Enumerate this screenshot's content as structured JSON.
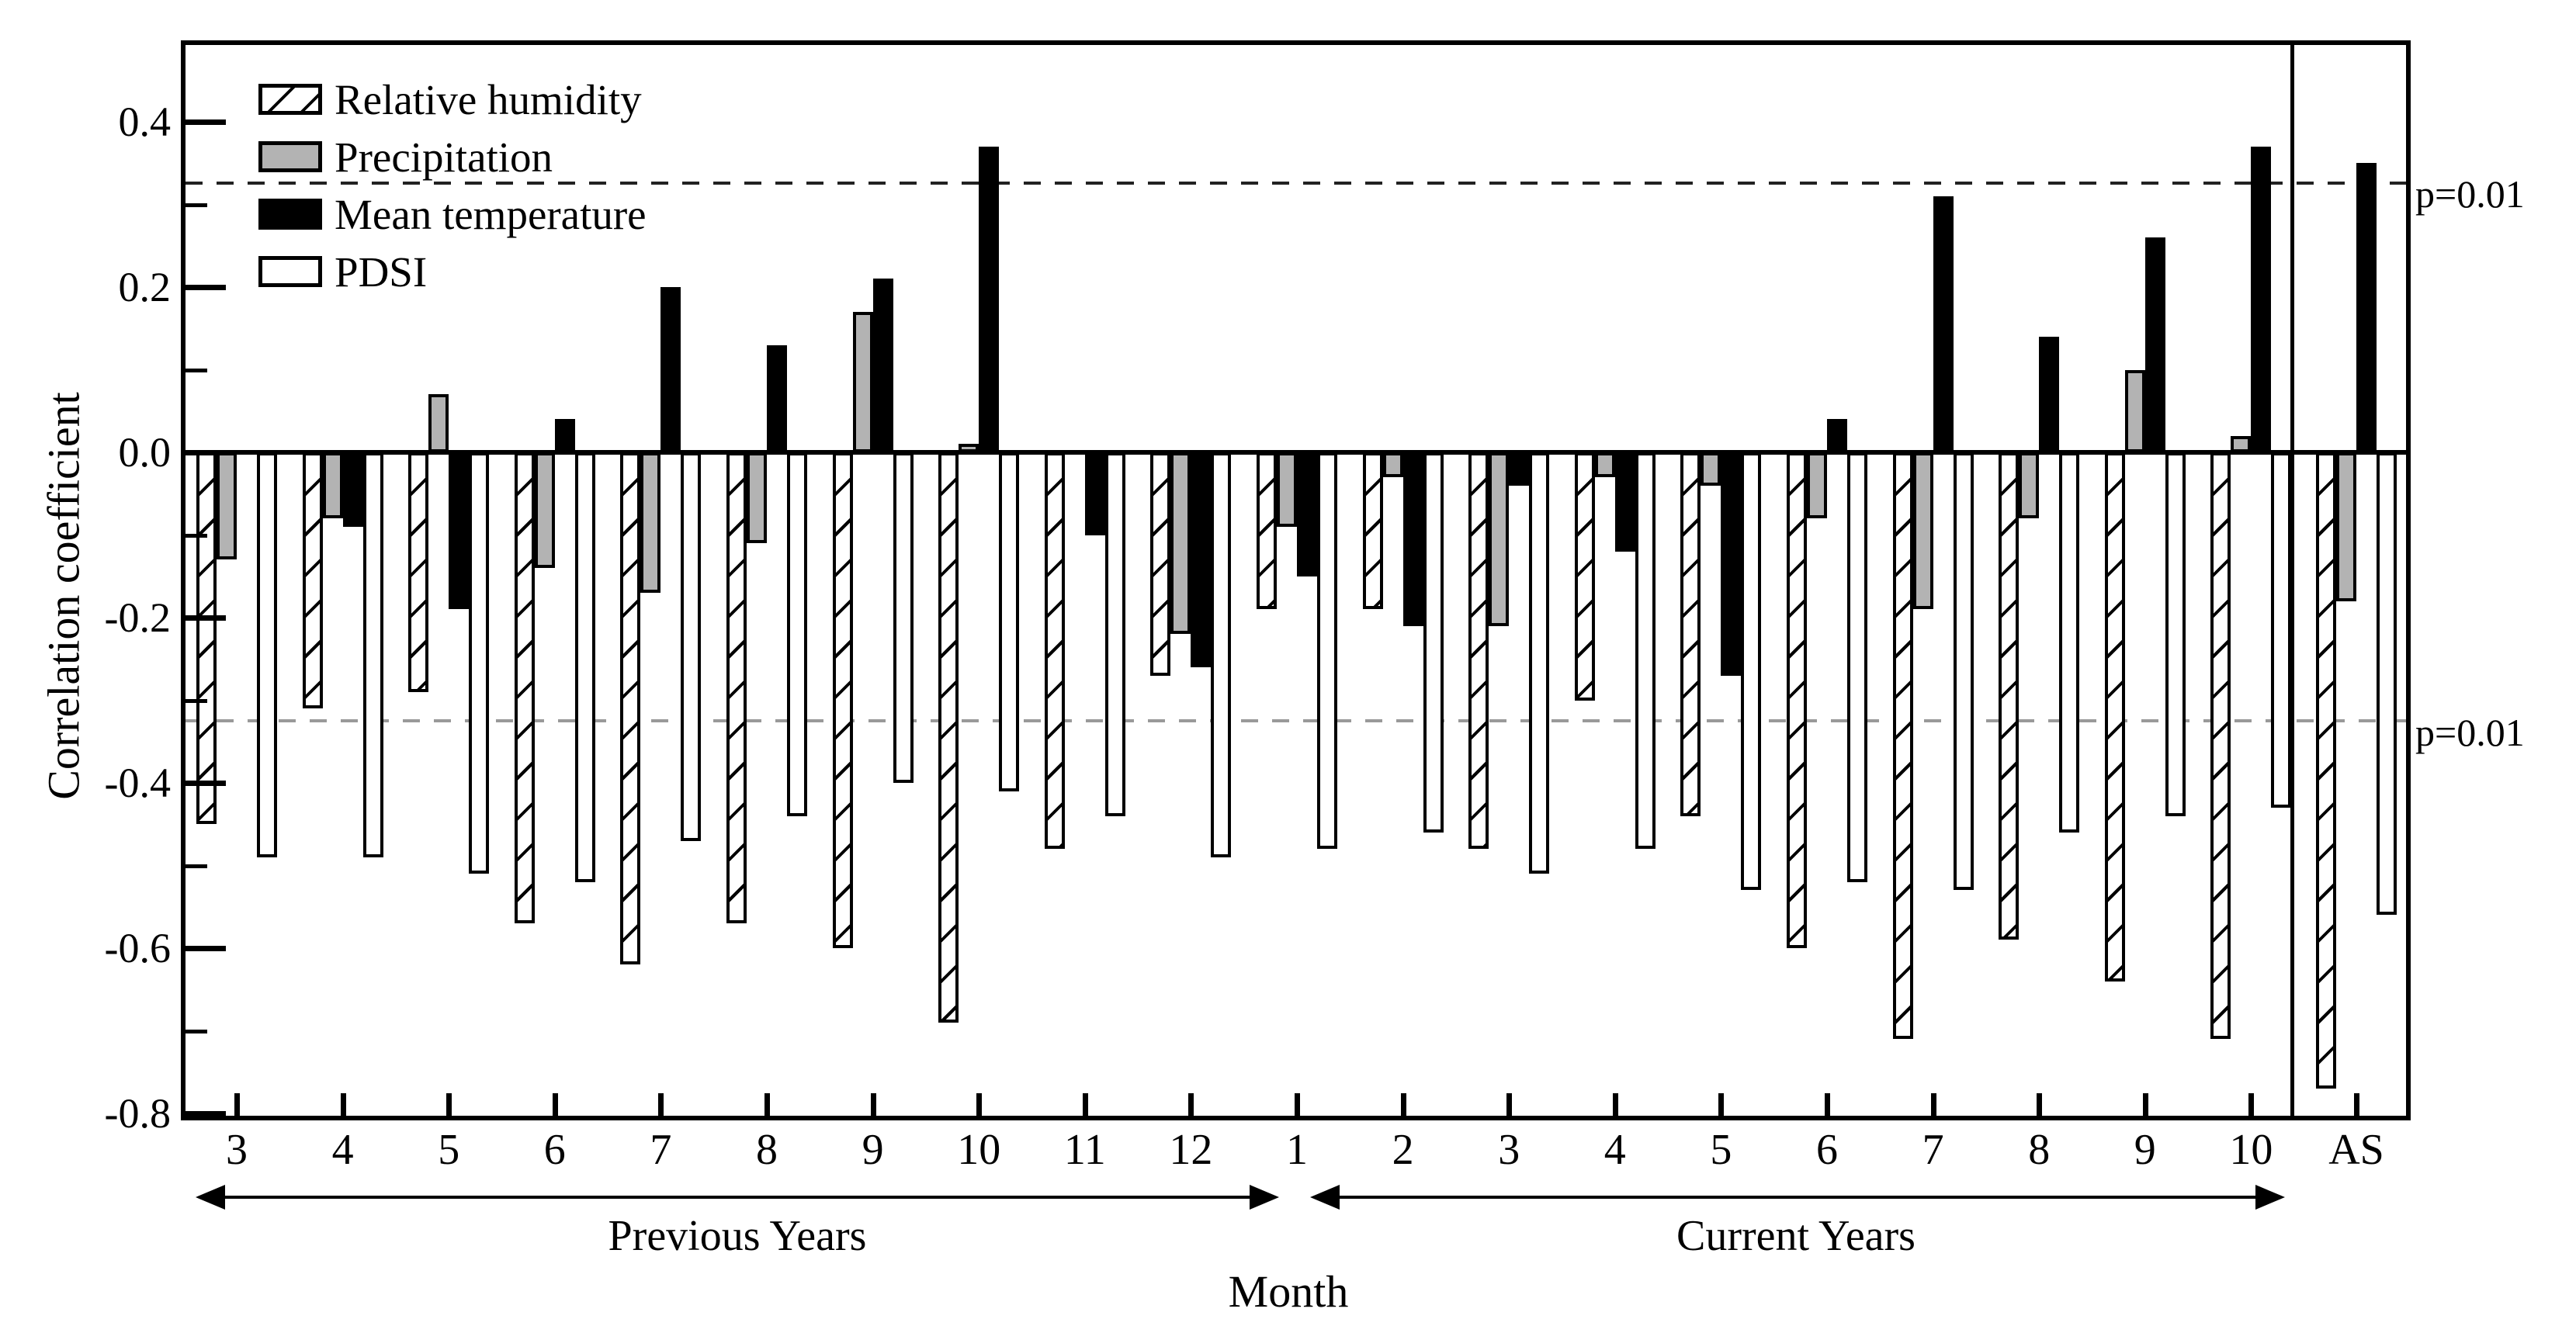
{
  "figure": {
    "y_axis_label": "Correlation coefficient",
    "x_axis_label": "Month",
    "span_labels": {
      "previous": "Previous Years",
      "current": "Current Years"
    },
    "y_tick_labels": [
      "0.4",
      "0.2",
      "0.0",
      "-0.2",
      "-0.4",
      "-0.6",
      "-0.8"
    ],
    "significance_label": "p=0.01",
    "legend": [
      {
        "key": "rh",
        "label": "Relative humidity"
      },
      {
        "key": "precip",
        "label": "Precipitation"
      },
      {
        "key": "temp",
        "label": "Mean temperature"
      },
      {
        "key": "pdsi",
        "label": "PDSI"
      }
    ],
    "colors": {
      "precipitation": "#b3b3b3",
      "temperature": "#000000",
      "pdsi": "#ffffff",
      "hatch": "#000000"
    }
  },
  "chart_data": {
    "type": "bar",
    "ylabel": "Correlation coefficient",
    "xlabel": "Month",
    "ylim": [
      -0.8,
      0.5
    ],
    "y_ticks": [
      0.4,
      0.2,
      0.0,
      -0.2,
      -0.4,
      -0.6,
      -0.8
    ],
    "grid": false,
    "legend_position": "top-left",
    "significance_lines": [
      {
        "value": 0.325,
        "label": "p=0.01",
        "style": "dashed"
      },
      {
        "value": -0.325,
        "label": "p=0.01",
        "style": "dashed"
      }
    ],
    "categories": [
      "3",
      "4",
      "5",
      "6",
      "7",
      "8",
      "9",
      "10",
      "11",
      "12",
      "1",
      "2",
      "3",
      "4",
      "5",
      "6",
      "7",
      "8",
      "9",
      "10",
      "AS"
    ],
    "category_periods": [
      "previous",
      "previous",
      "previous",
      "previous",
      "previous",
      "previous",
      "previous",
      "previous",
      "previous",
      "previous",
      "current",
      "current",
      "current",
      "current",
      "current",
      "current",
      "current",
      "current",
      "current",
      "current",
      "aggregate"
    ],
    "series": [
      {
        "name": "Relative humidity",
        "style": "rh",
        "values": [
          -0.45,
          -0.31,
          -0.29,
          -0.57,
          -0.62,
          -0.57,
          -0.6,
          -0.69,
          -0.48,
          -0.27,
          -0.19,
          -0.19,
          -0.48,
          -0.3,
          -0.44,
          -0.6,
          -0.71,
          -0.59,
          -0.64,
          -0.71,
          -0.77
        ]
      },
      {
        "name": "Precipitation",
        "style": "precip",
        "values": [
          -0.13,
          -0.08,
          0.07,
          -0.14,
          -0.17,
          -0.11,
          0.17,
          0.01,
          0.0,
          -0.22,
          -0.09,
          -0.03,
          -0.21,
          -0.03,
          -0.04,
          -0.08,
          -0.19,
          -0.08,
          0.1,
          0.02,
          -0.18
        ]
      },
      {
        "name": "Mean temperature",
        "style": "temp",
        "values": [
          0.0,
          -0.09,
          -0.19,
          0.04,
          0.2,
          0.13,
          0.21,
          0.37,
          -0.1,
          -0.26,
          -0.15,
          -0.21,
          -0.04,
          -0.12,
          -0.27,
          0.04,
          0.31,
          0.14,
          0.26,
          0.37,
          0.35
        ]
      },
      {
        "name": "PDSI",
        "style": "pdsi",
        "values": [
          -0.49,
          -0.49,
          -0.51,
          -0.52,
          -0.47,
          -0.44,
          -0.4,
          -0.41,
          -0.44,
          -0.49,
          -0.48,
          -0.46,
          -0.51,
          -0.48,
          -0.53,
          -0.52,
          -0.53,
          -0.46,
          -0.44,
          -0.43,
          -0.56
        ]
      }
    ]
  }
}
